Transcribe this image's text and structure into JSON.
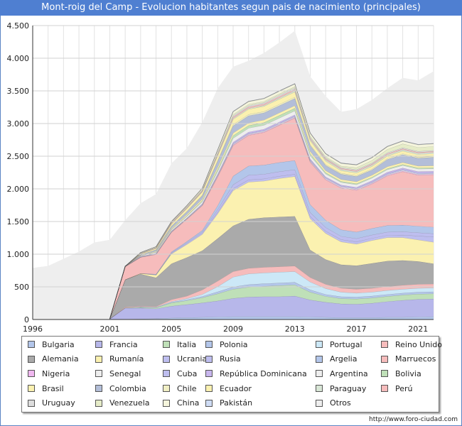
{
  "title": "Mont-roig del Camp - Evolucion habitantes segun pais de nacimiento (principales)",
  "footer": "http://www.foro-ciudad.com",
  "chart_data": {
    "type": "area",
    "stacked": true,
    "title": "Mont-roig del Camp - Evolucion habitantes segun pais de nacimiento (principales)",
    "xlim": [
      1996,
      2022
    ],
    "ylim": [
      0,
      4500
    ],
    "x_ticks": [
      1996,
      2001,
      2005,
      2009,
      2013,
      2017,
      2021
    ],
    "y_ticks": [
      {
        "value": 0,
        "label": "0"
      },
      {
        "value": 500,
        "label": "500"
      },
      {
        "value": 1000,
        "label": "1.000"
      },
      {
        "value": 1500,
        "label": "1.500"
      },
      {
        "value": 2000,
        "label": "2.000"
      },
      {
        "value": 2500,
        "label": "2.500"
      },
      {
        "value": 3000,
        "label": "3.000"
      },
      {
        "value": 3500,
        "label": "3.500"
      },
      {
        "value": 4000,
        "label": "4.000"
      },
      {
        "value": 4500,
        "label": "4.500"
      }
    ],
    "grid": true,
    "legend_position": "bottom",
    "total": {
      "x": [
        1996,
        1997,
        1998,
        1999,
        2000,
        2001,
        2002,
        2003,
        2004,
        2005,
        2006,
        2007,
        2008,
        2009,
        2010,
        2011,
        2012,
        2013,
        2014,
        2015,
        2016,
        2017,
        2018,
        2019,
        2020,
        2021,
        2022
      ],
      "values": [
        790,
        820,
        930,
        1040,
        1180,
        1220,
        1520,
        1780,
        1920,
        2390,
        2620,
        3020,
        3540,
        3870,
        3960,
        4080,
        4240,
        4420,
        3720,
        3420,
        3180,
        3220,
        3360,
        3540,
        3700,
        3660,
        3800
      ]
    },
    "series_x": [
      2001,
      2002,
      2003,
      2004,
      2005,
      2006,
      2007,
      2008,
      2009,
      2010,
      2011,
      2012,
      2013,
      2014,
      2015,
      2016,
      2017,
      2018,
      2019,
      2020,
      2021,
      2022
    ],
    "series": [
      {
        "name": "Bulgaria",
        "color": "#b3c6ea",
        "values": [
          0,
          5,
          10,
          15,
          25,
          30,
          35,
          40,
          45,
          45,
          45,
          45,
          45,
          40,
          35,
          30,
          30,
          30,
          35,
          35,
          40,
          45
        ]
      },
      {
        "name": "Francia",
        "color": "#b7b7ea",
        "values": [
          10,
          170,
          165,
          150,
          180,
          200,
          220,
          245,
          280,
          300,
          305,
          305,
          315,
          260,
          230,
          210,
          205,
          220,
          240,
          260,
          270,
          270
        ]
      },
      {
        "name": "Italia",
        "color": "#bfe0b8",
        "values": [
          0,
          5,
          10,
          15,
          50,
          60,
          80,
          110,
          140,
          150,
          160,
          170,
          170,
          120,
          90,
          80,
          80,
          80,
          80,
          80,
          80,
          80
        ]
      },
      {
        "name": "Polonia",
        "color": "#b3c6ea",
        "values": [
          0,
          0,
          5,
          5,
          10,
          15,
          20,
          30,
          35,
          40,
          40,
          40,
          40,
          35,
          30,
          30,
          30,
          30,
          30,
          30,
          30,
          30
        ]
      },
      {
        "name": "Portugal",
        "color": "#cce8f7",
        "values": [
          0,
          0,
          5,
          5,
          10,
          15,
          30,
          80,
          150,
          165,
          165,
          165,
          165,
          120,
          90,
          70,
          60,
          60,
          60,
          60,
          60,
          60
        ]
      },
      {
        "name": "Reino Unido",
        "color": "#f6bcbc",
        "values": [
          0,
          10,
          10,
          10,
          30,
          40,
          70,
          85,
          85,
          85,
          85,
          85,
          85,
          70,
          65,
          60,
          60,
          60,
          60,
          60,
          60,
          60
        ]
      },
      {
        "name": "Alemania",
        "color": "#aaaaaa",
        "values": [
          0,
          420,
          490,
          440,
          550,
          590,
          600,
          650,
          700,
          750,
          760,
          760,
          760,
          420,
          380,
          360,
          360,
          380,
          390,
          380,
          350,
          310
        ]
      },
      {
        "name": "Rumanía",
        "color": "#fbf1b0",
        "values": [
          0,
          0,
          10,
          40,
          150,
          200,
          250,
          380,
          540,
          570,
          560,
          590,
          610,
          480,
          400,
          350,
          330,
          350,
          360,
          350,
          330,
          330
        ]
      },
      {
        "name": "Ucrania",
        "color": "#bebeef",
        "values": [
          0,
          0,
          0,
          5,
          10,
          15,
          20,
          25,
          30,
          35,
          35,
          35,
          35,
          35,
          35,
          35,
          35,
          35,
          35,
          40,
          60,
          80
        ]
      },
      {
        "name": "Rusia",
        "color": "#bebeef",
        "values": [
          0,
          0,
          0,
          5,
          10,
          15,
          20,
          40,
          60,
          70,
          70,
          70,
          70,
          60,
          55,
          50,
          50,
          50,
          50,
          50,
          50,
          50
        ]
      },
      {
        "name": "Argelia",
        "color": "#b3c6ea",
        "values": [
          0,
          0,
          0,
          5,
          10,
          15,
          20,
          60,
          130,
          140,
          140,
          140,
          140,
          120,
          110,
          100,
          100,
          100,
          100,
          100,
          100,
          100
        ]
      },
      {
        "name": "Marruecos",
        "color": "#f6bcbc",
        "values": [
          0,
          200,
          250,
          300,
          300,
          340,
          380,
          440,
          470,
          470,
          500,
          570,
          650,
          650,
          620,
          640,
          640,
          680,
          760,
          820,
          780,
          800
        ]
      },
      {
        "name": "Nigeria",
        "color": "#f0b8f0",
        "values": [
          0,
          0,
          0,
          5,
          5,
          5,
          5,
          10,
          10,
          10,
          10,
          10,
          10,
          10,
          10,
          10,
          10,
          10,
          10,
          10,
          10,
          10
        ]
      },
      {
        "name": "Senegal",
        "color": "#eeeeee",
        "values": [
          0,
          0,
          0,
          5,
          5,
          5,
          5,
          10,
          10,
          10,
          10,
          10,
          10,
          10,
          10,
          10,
          10,
          10,
          10,
          10,
          10,
          10
        ]
      },
      {
        "name": "Cuba",
        "color": "#bebeef",
        "values": [
          0,
          0,
          5,
          5,
          5,
          5,
          10,
          10,
          10,
          10,
          10,
          10,
          10,
          10,
          10,
          10,
          10,
          10,
          15,
          15,
          15,
          15
        ]
      },
      {
        "name": "República Dominicana",
        "color": "#c8b6ee",
        "values": [
          0,
          0,
          5,
          5,
          5,
          5,
          10,
          15,
          20,
          20,
          20,
          20,
          20,
          20,
          15,
          15,
          15,
          20,
          20,
          20,
          20,
          20
        ]
      },
      {
        "name": "Argentina",
        "color": "#eeeeee",
        "values": [
          0,
          5,
          10,
          15,
          20,
          25,
          30,
          40,
          60,
          60,
          60,
          60,
          60,
          50,
          45,
          40,
          40,
          40,
          40,
          40,
          40,
          40
        ]
      },
      {
        "name": "Bolivia",
        "color": "#bfe0b8",
        "values": [
          0,
          0,
          0,
          5,
          5,
          10,
          15,
          30,
          40,
          40,
          40,
          40,
          40,
          30,
          20,
          15,
          15,
          15,
          15,
          15,
          15,
          15
        ]
      },
      {
        "name": "Brasil",
        "color": "#fbf1b0",
        "values": [
          0,
          0,
          5,
          10,
          15,
          20,
          25,
          35,
          40,
          40,
          40,
          40,
          40,
          35,
          30,
          30,
          30,
          30,
          30,
          30,
          30,
          30
        ]
      },
      {
        "name": "Colombia",
        "color": "#b3bed8",
        "values": [
          0,
          0,
          10,
          20,
          30,
          40,
          50,
          90,
          110,
          110,
          110,
          110,
          110,
          90,
          80,
          80,
          80,
          80,
          110,
          120,
          120,
          130
        ]
      },
      {
        "name": "Chile",
        "color": "#f1efc4",
        "values": [
          0,
          0,
          5,
          5,
          10,
          10,
          10,
          15,
          20,
          20,
          20,
          20,
          20,
          15,
          15,
          15,
          15,
          15,
          15,
          15,
          15,
          15
        ]
      },
      {
        "name": "Ecuador",
        "color": "#fbf1b0",
        "values": [
          0,
          0,
          10,
          20,
          30,
          40,
          50,
          70,
          80,
          80,
          80,
          80,
          80,
          60,
          50,
          40,
          40,
          40,
          40,
          40,
          40,
          40
        ]
      },
      {
        "name": "Paraguay",
        "color": "#d8e6d6",
        "values": [
          0,
          0,
          0,
          0,
          0,
          5,
          5,
          10,
          15,
          15,
          15,
          20,
          20,
          20,
          20,
          20,
          20,
          20,
          20,
          20,
          20,
          20
        ]
      },
      {
        "name": "Perú",
        "color": "#f6bcbc",
        "values": [
          0,
          0,
          5,
          5,
          10,
          10,
          10,
          15,
          20,
          20,
          20,
          20,
          20,
          15,
          15,
          15,
          15,
          15,
          15,
          15,
          15,
          15
        ]
      },
      {
        "name": "Uruguay",
        "color": "#dddddd",
        "values": [
          0,
          0,
          5,
          5,
          10,
          10,
          10,
          15,
          20,
          20,
          20,
          20,
          20,
          15,
          15,
          15,
          15,
          15,
          15,
          15,
          15,
          15
        ]
      },
      {
        "name": "Venezuela",
        "color": "#e6ecc8",
        "values": [
          0,
          0,
          5,
          5,
          5,
          5,
          10,
          15,
          20,
          20,
          20,
          20,
          20,
          20,
          20,
          20,
          30,
          40,
          50,
          60,
          60,
          60
        ]
      },
      {
        "name": "China",
        "color": "#f5f5dc",
        "values": [
          0,
          0,
          5,
          10,
          10,
          15,
          20,
          30,
          40,
          40,
          40,
          40,
          40,
          40,
          40,
          40,
          40,
          40,
          40,
          40,
          40,
          40
        ]
      },
      {
        "name": "Pakistán",
        "color": "#cfdcf5",
        "values": [
          0,
          0,
          0,
          0,
          0,
          0,
          0,
          5,
          5,
          5,
          5,
          5,
          5,
          5,
          5,
          5,
          5,
          5,
          5,
          5,
          5,
          5
        ]
      },
      {
        "name": "Otros",
        "color": "#eeeeee",
        "values": [
          0,
          0,
          0,
          0,
          0,
          0,
          0,
          0,
          0,
          0,
          0,
          0,
          0,
          0,
          0,
          0,
          0,
          0,
          0,
          0,
          0,
          0
        ]
      }
    ]
  }
}
